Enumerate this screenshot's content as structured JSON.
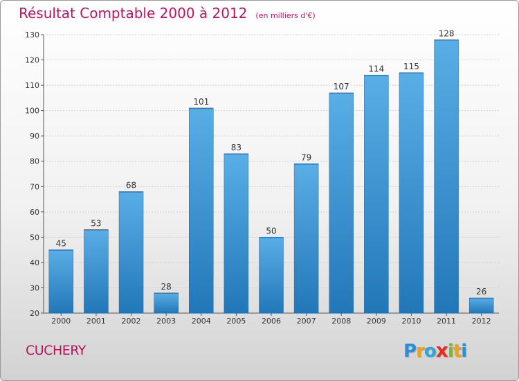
{
  "title": "Résultat Comptable 2000 à 2012",
  "unit": "(en milliers d'€)",
  "commune": "CUCHERY",
  "logo": {
    "letters": [
      "P",
      "r",
      "o",
      "x",
      "i",
      "t",
      "i"
    ],
    "colors": [
      "#2b8fd6",
      "#f0a30a",
      "#2aa8d8",
      "#e0301e",
      "#7cb82f",
      "#f0a30a",
      "#2b8fd6"
    ]
  },
  "colors": {
    "bar_top": "#5aaee6",
    "bar_bottom": "#2277b8",
    "accent": "#c0125b",
    "grid": "#cfcfcf"
  },
  "chart_data": {
    "type": "bar",
    "categories": [
      "2000",
      "2001",
      "2002",
      "2003",
      "2004",
      "2005",
      "2006",
      "2007",
      "2008",
      "2009",
      "2010",
      "2011",
      "2012"
    ],
    "values": [
      45,
      53,
      68,
      28,
      101,
      83,
      50,
      79,
      107,
      114,
      115,
      128,
      26
    ],
    "value_labels": [
      "45",
      "53",
      "68",
      "28",
      "101",
      "83",
      "50",
      "79",
      "107",
      "114",
      "115",
      "128",
      "26"
    ],
    "title": "Résultat Comptable 2000 à 2012",
    "ylim": [
      20,
      130
    ],
    "yticks": [
      20,
      30,
      40,
      50,
      60,
      70,
      80,
      90,
      100,
      110,
      120,
      130
    ],
    "ytick_labels": [
      "20",
      "30",
      "40",
      "50",
      "60",
      "70",
      "80",
      "90",
      "100",
      "110",
      "120",
      "130"
    ],
    "grid": true
  }
}
